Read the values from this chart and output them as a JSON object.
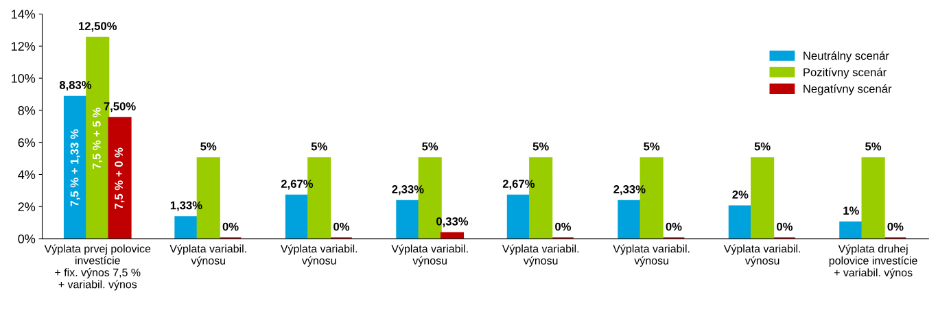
{
  "chart_data": {
    "type": "bar",
    "categories": [
      "Výplata prvej polovice\ninvestície\n+ fix. výnos 7,5 %\n+ variabil. výnos",
      "Výplata variabil.\nvýnosu",
      "Výplata variabil.\nvýnosu",
      "Výplata variabil.\nvýnosu",
      "Výplata variabil.\nvýnosu",
      "Výplata variabil.\nvýnosu",
      "Výplata variabil.\nvýnosu",
      "Výplata druhej\npolovice investície\n+ variabil. výnos"
    ],
    "series": [
      {
        "name": "Neutrálny scenár",
        "color": "#00a2dd",
        "values": [
          8.83,
          1.33,
          2.67,
          2.33,
          2.67,
          2.33,
          2,
          1
        ],
        "value_labels": [
          "8,83%",
          "1,33%",
          "2,67%",
          "2,33%",
          "2,67%",
          "2,33%",
          "2%",
          "1%"
        ]
      },
      {
        "name": "Pozitívny scenár",
        "color": "#9acd00",
        "values": [
          12.5,
          5,
          5,
          5,
          5,
          5,
          5,
          5
        ],
        "value_labels": [
          "12,50%",
          "5%",
          "5%",
          "5%",
          "5%",
          "5%",
          "5%",
          "5%"
        ]
      },
      {
        "name": "Negatívny scenár",
        "color": "#c00000",
        "values": [
          7.5,
          0,
          0,
          0.33,
          0,
          0,
          0,
          0
        ],
        "value_labels": [
          "7,50%",
          "0%",
          "0%",
          "0,33%",
          "0%",
          "0%",
          "0%",
          "0%"
        ]
      }
    ],
    "annotations": [
      "7,5 % + 1,33 %",
      "7,5 % + 5 %",
      "7,5 % + 0 %"
    ],
    "ylim": [
      0,
      14
    ],
    "yticks": [
      {
        "value": 0,
        "label": "0%"
      },
      {
        "value": 2,
        "label": "2%"
      },
      {
        "value": 4,
        "label": "4%"
      },
      {
        "value": 6,
        "label": "6%"
      },
      {
        "value": 8,
        "label": "8%"
      },
      {
        "value": 10,
        "label": "10%"
      },
      {
        "value": 12,
        "label": "12%"
      },
      {
        "value": 14,
        "label": "14%"
      }
    ],
    "grid": false,
    "legend": "top right"
  }
}
